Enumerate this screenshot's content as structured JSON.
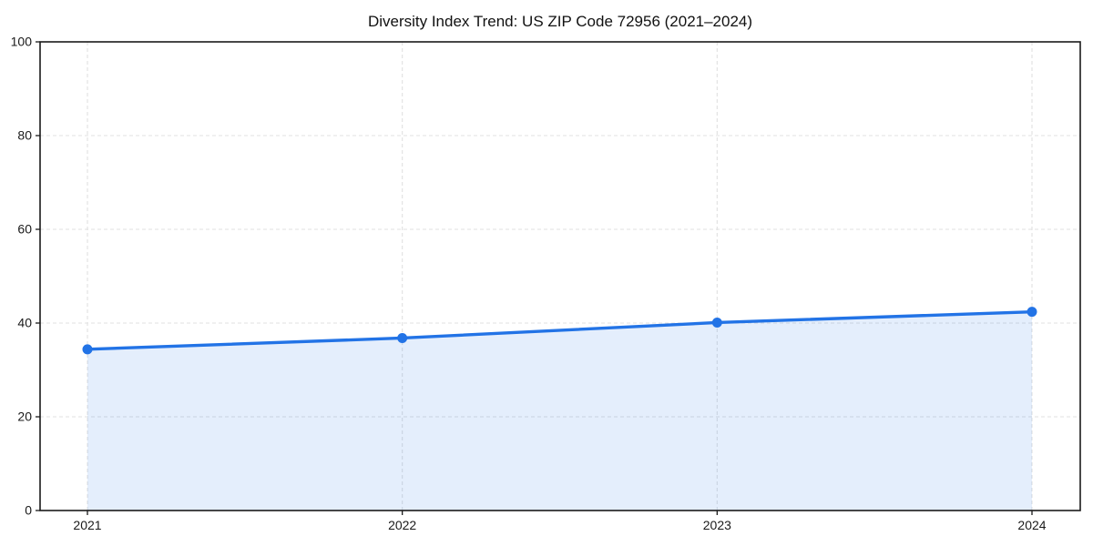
{
  "chart": {
    "title": "Diversity Index Trend: US ZIP Code 72956 (2021–2024)"
  },
  "chart_data": {
    "type": "line",
    "title": "Diversity Index Trend: US ZIP Code 72956 (2021–2024)",
    "xlabel": "",
    "ylabel": "",
    "x": [
      "2021",
      "2022",
      "2023",
      "2024"
    ],
    "series": [
      {
        "name": "Diversity Index",
        "values": [
          34.4,
          36.8,
          40.1,
          42.4
        ]
      }
    ],
    "ylim": [
      0,
      100
    ],
    "yticks": [
      0,
      20,
      40,
      60,
      80,
      100
    ],
    "grid": true,
    "grid_style": "dashed",
    "legend": false,
    "area_fill": true,
    "marker": "circle",
    "colors": {
      "line": "#2273E6",
      "marker": "#2273E6",
      "area": "rgba(34,115,230,0.12)",
      "grid": "#E1E1E1",
      "axis": "#1A1A1A",
      "tick_label": "#1A1A1A",
      "background": "#FFFFFF"
    }
  }
}
